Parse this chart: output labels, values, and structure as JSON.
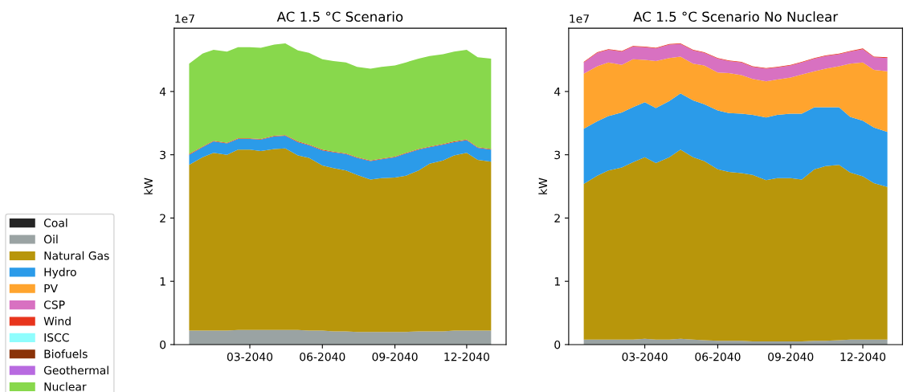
{
  "chart_data": [
    {
      "type": "area",
      "stacked": true,
      "title": "AC 1.5 °C Scenario",
      "ylabel": "kW",
      "annotations": [
        "1e7"
      ],
      "legend": "left",
      "grid": false,
      "x": [
        "2039-12-15",
        "2040-01-01",
        "2040-01-15",
        "2040-02-01",
        "2040-02-15",
        "2040-03-01",
        "2040-03-15",
        "2040-04-01",
        "2040-04-15",
        "2040-05-01",
        "2040-05-15",
        "2040-06-01",
        "2040-06-15",
        "2040-07-01",
        "2040-07-15",
        "2040-08-01",
        "2040-08-15",
        "2040-09-01",
        "2040-09-15",
        "2040-10-01",
        "2040-10-15",
        "2040-11-01",
        "2040-11-15",
        "2040-12-01",
        "2040-12-15",
        "2041-01-01"
      ],
      "xlim": [
        "2039-11-26",
        "2041-01-20"
      ],
      "xticks": [
        {
          "value": "2040-03-01",
          "label": "03-2040"
        },
        {
          "value": "2040-06-01",
          "label": "06-2040"
        },
        {
          "value": "2040-09-01",
          "label": "09-2040"
        },
        {
          "value": "2040-12-01",
          "label": "12-2040"
        }
      ],
      "ylim": [
        0,
        5
      ],
      "yticks": [
        0,
        1,
        2,
        3,
        4
      ],
      "series": [
        {
          "name": "Coal",
          "color": "#262626",
          "values": [
            null,
            null,
            null,
            null,
            null,
            null,
            null,
            null,
            null,
            null,
            null,
            null,
            null,
            null,
            null,
            null,
            null,
            null,
            null,
            null,
            null,
            null,
            null,
            null,
            null,
            null
          ]
        },
        {
          "name": "Oil",
          "color": "#9aa3a3",
          "values": [
            0.22,
            0.22,
            0.22,
            0.22,
            0.23,
            0.23,
            0.23,
            0.23,
            0.23,
            0.23,
            0.22,
            0.22,
            0.21,
            0.21,
            0.2,
            0.2,
            0.2,
            0.2,
            0.2,
            0.21,
            0.21,
            0.21,
            0.22,
            0.22,
            0.22,
            0.22
          ]
        },
        {
          "name": "Natural Gas",
          "color": "#b8960b",
          "values": [
            2.62,
            2.74,
            2.81,
            2.78,
            2.85,
            2.85,
            2.83,
            2.86,
            2.87,
            2.76,
            2.73,
            2.61,
            2.58,
            2.54,
            2.48,
            2.41,
            2.43,
            2.44,
            2.47,
            2.54,
            2.65,
            2.7,
            2.77,
            2.81,
            2.7,
            2.67
          ]
        },
        {
          "name": "Hydro",
          "color": "#2b9be9",
          "values": [
            0.16,
            0.16,
            0.18,
            0.18,
            0.17,
            0.17,
            0.18,
            0.2,
            0.2,
            0.21,
            0.2,
            0.24,
            0.25,
            0.26,
            0.27,
            0.29,
            0.3,
            0.32,
            0.35,
            0.33,
            0.26,
            0.25,
            0.21,
            0.2,
            0.19,
            0.19
          ]
        },
        {
          "name": "PV",
          "color": "#ffa42e",
          "values": [
            null,
            null,
            null,
            null,
            null,
            null,
            null,
            null,
            null,
            null,
            null,
            null,
            null,
            null,
            null,
            null,
            null,
            null,
            null,
            null,
            null,
            null,
            null,
            null,
            null,
            null
          ]
        },
        {
          "name": "CSP",
          "color": "#d871c1",
          "values": [
            null,
            null,
            null,
            null,
            null,
            null,
            null,
            null,
            null,
            null,
            null,
            null,
            null,
            null,
            null,
            null,
            null,
            null,
            null,
            null,
            null,
            null,
            null,
            null,
            null,
            null
          ]
        },
        {
          "name": "Wind",
          "color": "#e8341c",
          "values": [
            0.01,
            0.01,
            0.01,
            0.01,
            0.01,
            0.01,
            0.01,
            0.01,
            0.01,
            0.01,
            0.01,
            0.01,
            0.01,
            0.01,
            0.01,
            0.01,
            0.01,
            0.01,
            0.01,
            0.01,
            0.01,
            0.01,
            0.01,
            0.01,
            0.01,
            0.01
          ]
        },
        {
          "name": "ISCC",
          "color": "#8ffdfd",
          "values": [
            null,
            null,
            null,
            null,
            null,
            null,
            null,
            null,
            null,
            null,
            null,
            null,
            null,
            null,
            null,
            null,
            null,
            null,
            null,
            null,
            null,
            null,
            null,
            null,
            null,
            null
          ]
        },
        {
          "name": "Biofuels",
          "color": "#8a3208",
          "values": [
            null,
            null,
            null,
            null,
            null,
            null,
            null,
            null,
            null,
            null,
            null,
            null,
            null,
            null,
            null,
            null,
            null,
            null,
            null,
            null,
            null,
            null,
            null,
            null,
            null,
            null
          ]
        },
        {
          "name": "Geothermal",
          "color": "#b86ae0",
          "values": [
            null,
            null,
            null,
            null,
            null,
            null,
            null,
            null,
            null,
            null,
            null,
            null,
            null,
            null,
            null,
            null,
            null,
            null,
            null,
            null,
            null,
            null,
            null,
            null,
            null,
            null
          ]
        },
        {
          "name": "Nuclear",
          "color": "#88d84c",
          "values": [
            1.43,
            1.47,
            1.44,
            1.44,
            1.44,
            1.44,
            1.44,
            1.44,
            1.45,
            1.44,
            1.45,
            1.43,
            1.43,
            1.44,
            1.43,
            1.45,
            1.45,
            1.44,
            1.43,
            1.43,
            1.43,
            1.42,
            1.42,
            1.42,
            1.42,
            1.43
          ]
        }
      ]
    },
    {
      "type": "area",
      "stacked": true,
      "title": "AC 1.5 °C Scenario No Nuclear",
      "ylabel": "kW",
      "annotations": [
        "1e7"
      ],
      "grid": false,
      "x": [
        "2039-12-15",
        "2040-01-01",
        "2040-01-15",
        "2040-02-01",
        "2040-02-15",
        "2040-03-01",
        "2040-03-15",
        "2040-04-01",
        "2040-04-15",
        "2040-05-01",
        "2040-05-15",
        "2040-06-01",
        "2040-06-15",
        "2040-07-01",
        "2040-07-15",
        "2040-08-01",
        "2040-08-15",
        "2040-09-01",
        "2040-09-15",
        "2040-10-01",
        "2040-10-15",
        "2040-11-01",
        "2040-11-15",
        "2040-12-01",
        "2040-12-15",
        "2041-01-01"
      ],
      "xlim": [
        "2039-11-26",
        "2041-01-20"
      ],
      "xticks": [
        {
          "value": "2040-03-01",
          "label": "03-2040"
        },
        {
          "value": "2040-06-01",
          "label": "06-2040"
        },
        {
          "value": "2040-09-01",
          "label": "09-2040"
        },
        {
          "value": "2040-12-01",
          "label": "12-2040"
        }
      ],
      "ylim": [
        0,
        5
      ],
      "yticks": [
        0,
        1,
        2,
        3,
        4
      ],
      "series": [
        {
          "color": "#9aa3a3",
          "values": [
            0.08,
            0.08,
            0.08,
            0.08,
            0.08,
            0.09,
            0.08,
            0.08,
            0.09,
            0.08,
            0.07,
            0.06,
            0.06,
            0.06,
            0.05,
            0.05,
            0.05,
            0.05,
            0.05,
            0.06,
            0.06,
            0.07,
            0.08,
            0.08,
            0.08,
            0.08
          ]
        },
        {
          "color": "#b8960b",
          "values": [
            2.46,
            2.59,
            2.67,
            2.72,
            2.8,
            2.87,
            2.79,
            2.88,
            2.99,
            2.88,
            2.83,
            2.71,
            2.67,
            2.65,
            2.63,
            2.55,
            2.58,
            2.58,
            2.56,
            2.71,
            2.76,
            2.77,
            2.64,
            2.58,
            2.47,
            2.41
          ]
        },
        {
          "color": "#2b9be9",
          "values": [
            0.87,
            0.86,
            0.86,
            0.87,
            0.87,
            0.87,
            0.87,
            0.89,
            0.89,
            0.9,
            0.9,
            0.93,
            0.93,
            0.94,
            0.95,
            0.99,
            1.0,
            1.02,
            1.04,
            0.98,
            0.93,
            0.91,
            0.88,
            0.88,
            0.88,
            0.87
          ]
        },
        {
          "color": "#ffa42e",
          "values": [
            0.87,
            0.87,
            0.85,
            0.75,
            0.76,
            0.67,
            0.74,
            0.68,
            0.58,
            0.58,
            0.61,
            0.6,
            0.63,
            0.61,
            0.57,
            0.57,
            0.56,
            0.57,
            0.62,
            0.57,
            0.61,
            0.65,
            0.84,
            0.92,
            0.91,
            0.96
          ]
        },
        {
          "color": "#d871c1",
          "values": [
            0.18,
            0.21,
            0.2,
            0.21,
            0.2,
            0.2,
            0.2,
            0.21,
            0.2,
            0.21,
            0.2,
            0.22,
            0.19,
            0.2,
            0.19,
            0.2,
            0.19,
            0.19,
            0.19,
            0.2,
            0.2,
            0.19,
            0.19,
            0.21,
            0.2,
            0.21
          ]
        },
        {
          "color": "#e8341c",
          "values": [
            0.01,
            0.01,
            0.01,
            0.01,
            0.01,
            0.01,
            0.01,
            0.01,
            0.01,
            0.01,
            0.01,
            0.01,
            0.01,
            0.01,
            0.01,
            0.01,
            0.01,
            0.01,
            0.01,
            0.01,
            0.01,
            0.01,
            0.01,
            0.01,
            0.01,
            0.01
          ]
        }
      ]
    }
  ]
}
